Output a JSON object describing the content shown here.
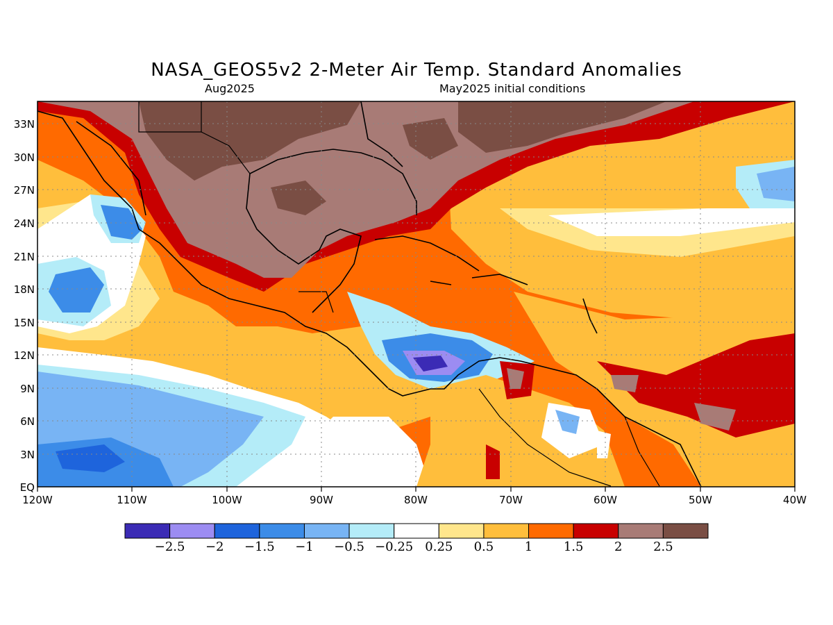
{
  "title": "NASA_GEOS5v2 2-Meter Air Temp. Standard Anomalies",
  "subtitle_left": "Aug2025",
  "subtitle_right": "May2025 initial conditions",
  "lat_labels": [
    "33N",
    "30N",
    "27N",
    "24N",
    "21N",
    "18N",
    "15N",
    "12N",
    "9N",
    "6N",
    "3N",
    "EQ"
  ],
  "lon_labels": [
    "120W",
    "110W",
    "100W",
    "90W",
    "80W",
    "70W",
    "60W",
    "50W",
    "40W"
  ],
  "colorbar": {
    "colors": [
      "#3b2bb5",
      "#9c8cf2",
      "#1e64dc",
      "#3c8ce8",
      "#78b4f4",
      "#b4ecf8",
      "#ffffff",
      "#ffe68c",
      "#ffbe3c",
      "#ff6a00",
      "#c80000",
      "#a87b76",
      "#7a4e44"
    ],
    "labels": [
      "−2.5",
      "−2",
      "−1.5",
      "−1",
      "−0.5",
      "−0.25",
      "0.25",
      "0.5",
      "1",
      "1.5",
      "2",
      "2.5"
    ]
  },
  "legend_colors": {
    "land_outline": "#000000",
    "grid": "#888888"
  }
}
